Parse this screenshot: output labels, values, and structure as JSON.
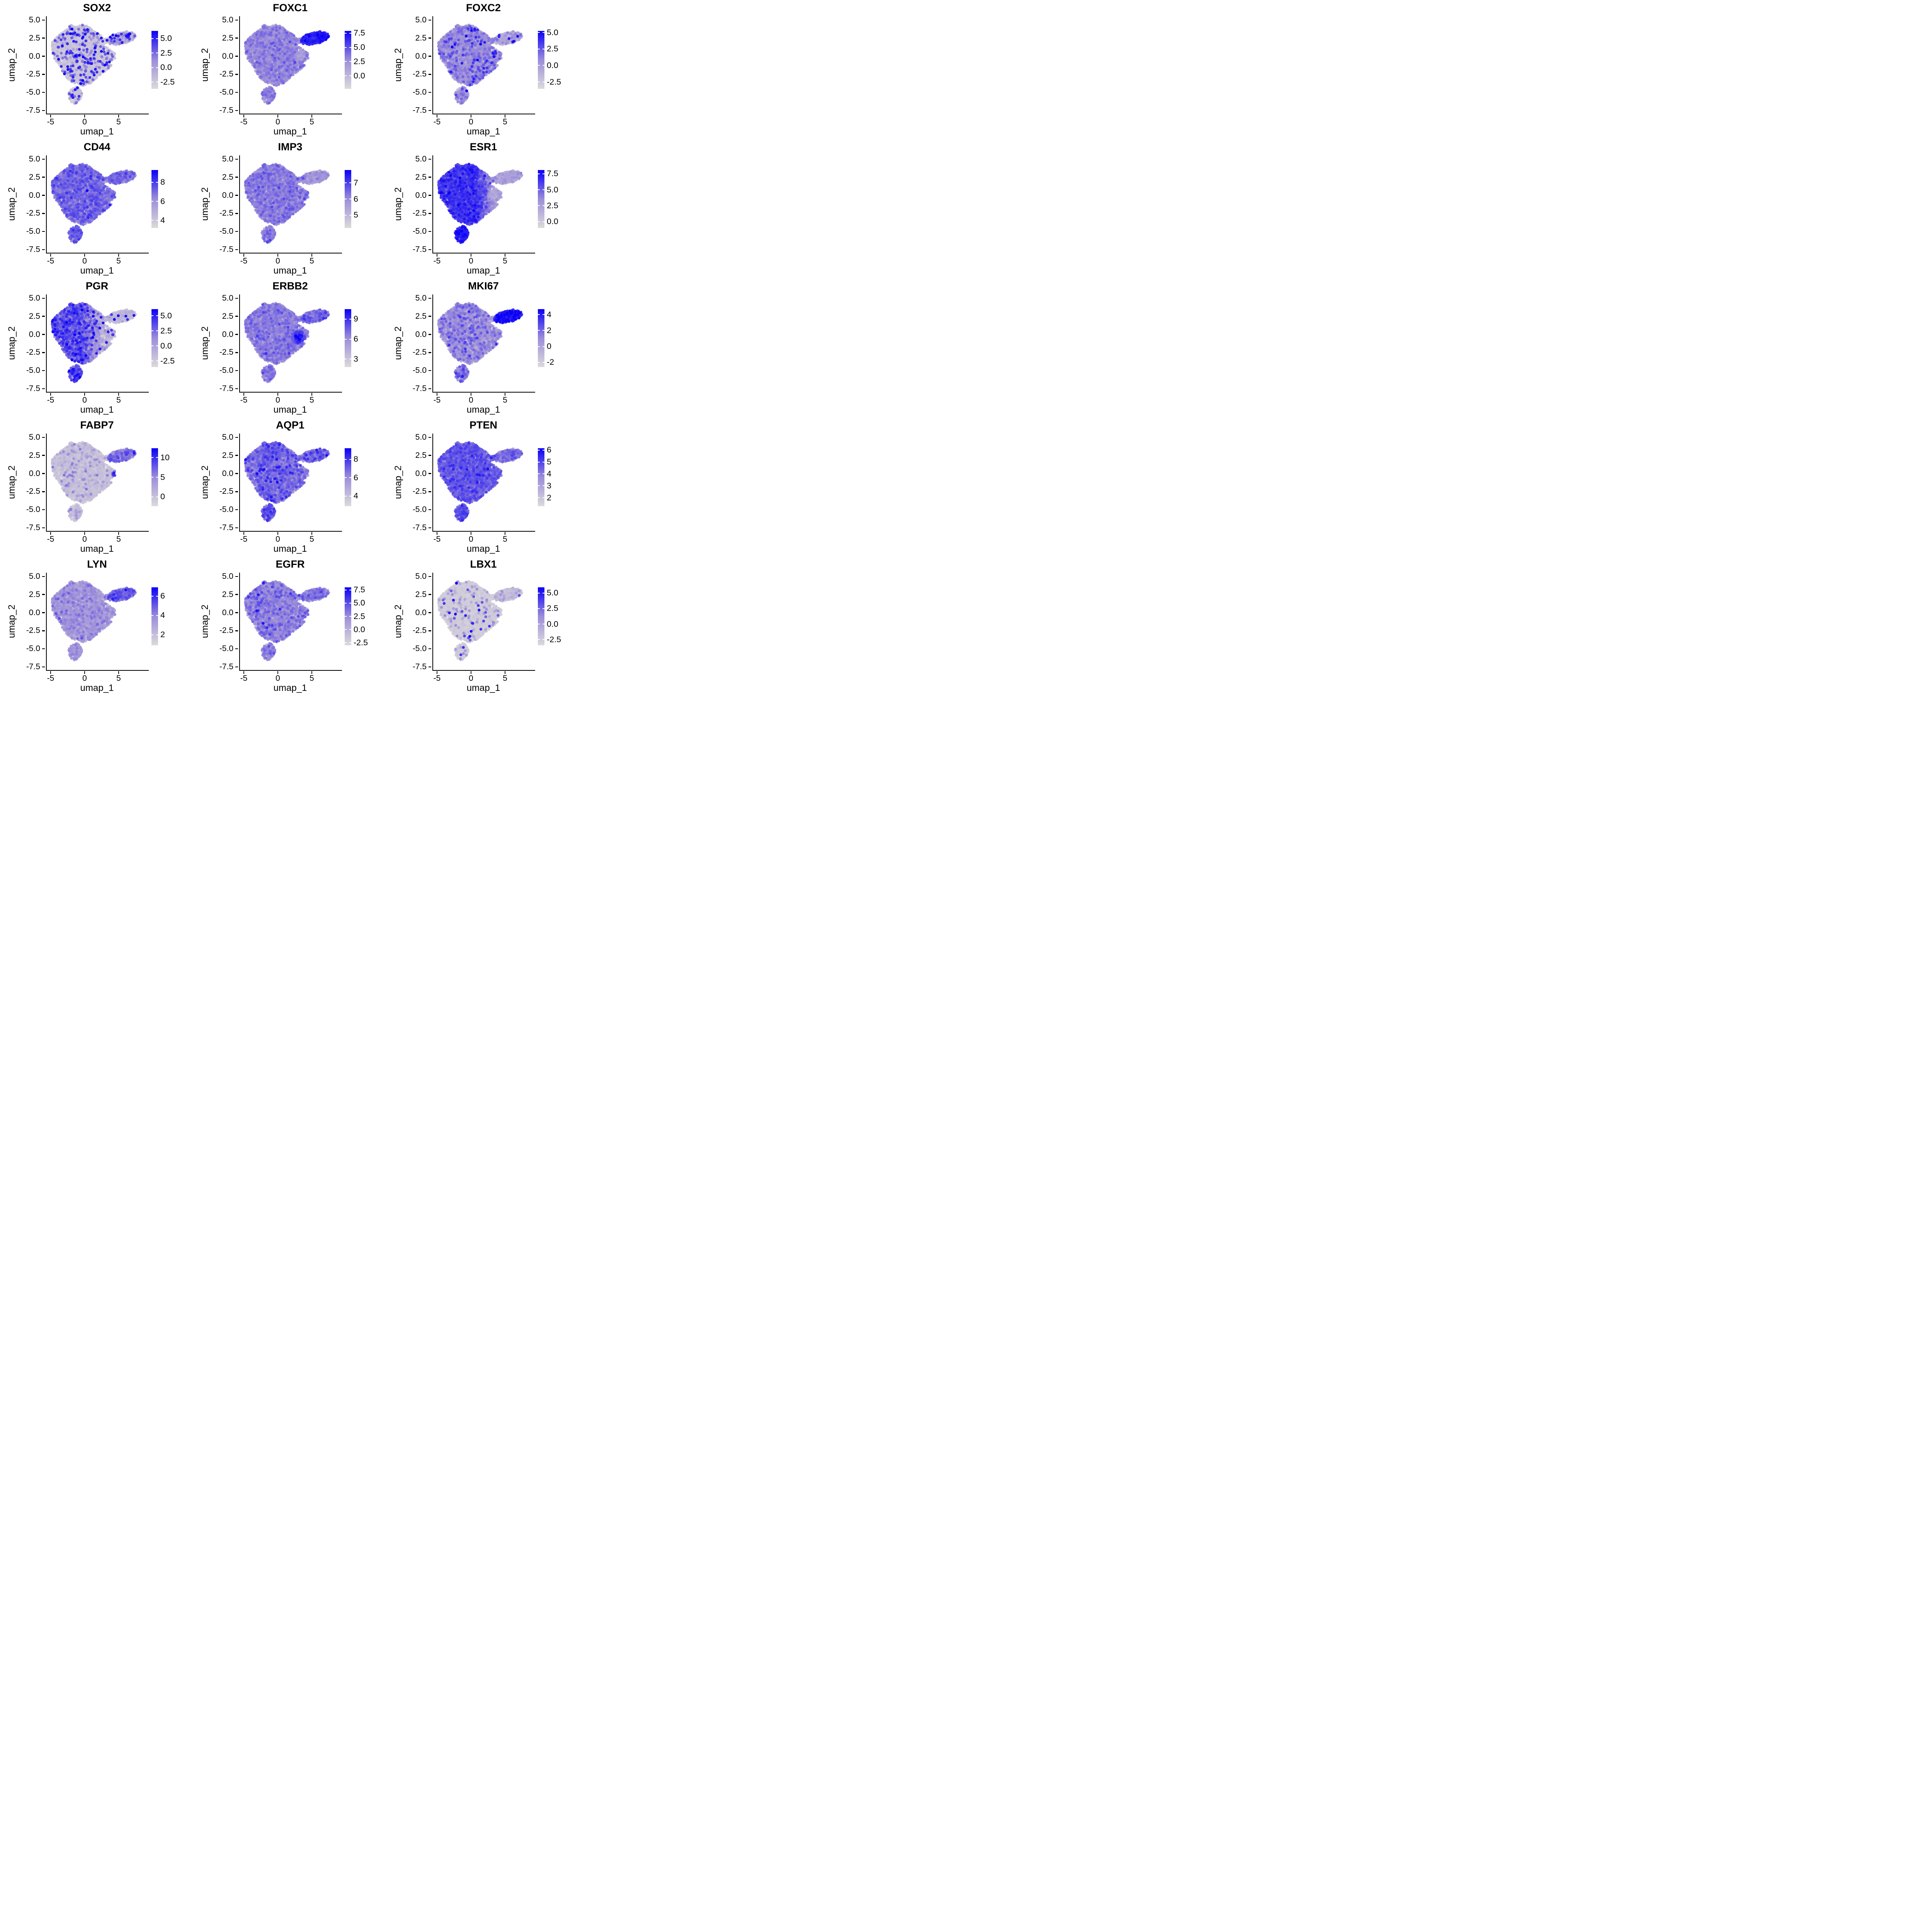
{
  "figure": {
    "rows": 5,
    "cols": 3,
    "background": "#FFFFFF",
    "description": "Grid of single-cell UMAP feature plots; identical embedding in every panel, points colored by per-gene expression from light grey (low) to blue (high)."
  },
  "axes": {
    "x_label": "umap_1",
    "y_label": "umap_2",
    "x_tick_labels": [
      "-5",
      "0",
      "5"
    ],
    "x_tick_values": [
      -5,
      0,
      5
    ],
    "y_tick_labels": [
      "5.0",
      "2.5",
      "0.0",
      "-2.5",
      "-5.0",
      "-7.5"
    ],
    "y_tick_values": [
      5,
      2.5,
      0,
      -2.5,
      -5,
      -7.5
    ],
    "x_domain": [
      -5.68,
      9.32
    ],
    "y_domain": [
      -7.93,
      5.53
    ]
  },
  "chart_data": {
    "type": "scatter",
    "subtype": "umap-feature-plot-grid",
    "grid": "5 rows x 3 columns",
    "colors": {
      "low": "#DCDADA",
      "mid": "#9C8DDA",
      "high": "#0A00F8"
    },
    "axes": {
      "x_label": "umap_1",
      "y_label": "umap_2",
      "x_tick_labels": [
        "-5",
        "0",
        "5"
      ],
      "x_tick_values": [
        -5,
        0,
        5
      ],
      "y_tick_labels": [
        "5.0",
        "2.5",
        "0.0",
        "-2.5",
        "-5.0",
        "-7.5"
      ],
      "y_tick_values": [
        5,
        2.5,
        0,
        -2.5,
        -5,
        -7.5
      ],
      "x_domain": [
        -5.68,
        9.32
      ],
      "y_domain": [
        -7.93,
        5.53
      ]
    },
    "embedding": {
      "note": "Shared UMAP embedding, ~2800 cells, procedurally regenerated from these cluster outlines (data coordinates).",
      "seed": 42,
      "main": {
        "count": 2300,
        "polygon": [
          [
            -4.9,
            1.9
          ],
          [
            -4.1,
            2.7
          ],
          [
            -2.9,
            3.6
          ],
          [
            -2.1,
            4.35
          ],
          [
            -1.3,
            4.05
          ],
          [
            -0.35,
            4.4
          ],
          [
            0.55,
            4.05
          ],
          [
            1.3,
            3.4
          ],
          [
            2.2,
            2.95
          ],
          [
            2.75,
            2.35
          ],
          [
            2.6,
            1.7
          ],
          [
            3.1,
            1.25
          ],
          [
            4.3,
            0.4
          ],
          [
            4.35,
            -0.3
          ],
          [
            3.55,
            -0.85
          ],
          [
            3.9,
            -1.45
          ],
          [
            3.1,
            -1.9
          ],
          [
            2.35,
            -2.4
          ],
          [
            1.55,
            -3.1
          ],
          [
            0.6,
            -3.8
          ],
          [
            -0.3,
            -4.15
          ],
          [
            -1.15,
            -3.95
          ],
          [
            -2.0,
            -3.55
          ],
          [
            -2.7,
            -3.0
          ],
          [
            -3.3,
            -2.2
          ],
          [
            -3.7,
            -1.35
          ],
          [
            -4.45,
            -0.55
          ],
          [
            -4.9,
            0.4
          ]
        ]
      },
      "appendage": {
        "count": 190,
        "polygon": [
          [
            -1.35,
            -4.1
          ],
          [
            -0.85,
            -4.45
          ],
          [
            -0.5,
            -5.0
          ],
          [
            -0.55,
            -5.65
          ],
          [
            -1.0,
            -6.1
          ],
          [
            -1.5,
            -6.6
          ],
          [
            -2.05,
            -6.35
          ],
          [
            -2.35,
            -5.85
          ],
          [
            -2.5,
            -5.25
          ],
          [
            -2.2,
            -4.7
          ],
          [
            -1.8,
            -4.4
          ]
        ]
      },
      "satellite": {
        "count": 300,
        "cx": 5.35,
        "cy": 2.5,
        "rx": 2.05,
        "ry": 0.8,
        "angle_deg": 12
      },
      "bridge": {
        "count": 22,
        "x0": 2.5,
        "y0": 2.05,
        "x1": 3.6,
        "y1": 2.35,
        "spread": 0.22
      }
    },
    "panels": [
      {
        "gene": "SOX2",
        "legend": {
          "labels": [
            "5.0",
            "2.5",
            "0.0",
            "-2.5"
          ],
          "values": [
            5,
            2.5,
            0,
            -2.5
          ],
          "vmin": -3.7,
          "vmax": 6.3
        },
        "summary": "mostly low (grey); scattered strongly positive cells",
        "expr": {
          "base": 0.1,
          "noise": 0.05,
          "mods": [
            {
              "type": "region",
              "region": "satellite",
              "t": 0.18,
              "noise": 0.12
            },
            {
              "type": "sparse",
              "frac": 0.1,
              "tmin": 0.3,
              "tmax": 1.0
            }
          ]
        }
      },
      {
        "gene": "FOXC1",
        "legend": {
          "labels": [
            "7.5",
            "5.0",
            "2.5",
            "0.0"
          ],
          "values": [
            7.5,
            5,
            2.5,
            0
          ],
          "vmin": -2.3,
          "vmax": 7.9
        },
        "summary": "moderate everywhere; top-right satellite cluster strongly positive",
        "expr": {
          "base": 0.42,
          "noise": 0.1,
          "mods": [
            {
              "type": "disk",
              "cx": 3.2,
              "cy": 0.2,
              "r": 0.95,
              "t": 0.3,
              "noise": 0.08
            },
            {
              "type": "region",
              "region": "satellite",
              "t": 0.78,
              "noise": 0.1
            },
            {
              "type": "disk",
              "cx": 6.2,
              "cy": 2.7,
              "r": 1.3,
              "t": 0.88,
              "noise": 0.08
            },
            {
              "type": "region",
              "region": "appendage",
              "t": 0.45,
              "noise": 0.1
            }
          ]
        }
      },
      {
        "gene": "FOXC2",
        "legend": {
          "labels": [
            "5.0",
            "2.5",
            "0.0",
            "-2.5"
          ],
          "values": [
            5,
            2.5,
            0,
            -2.5
          ],
          "vmin": -3.55,
          "vmax": 5.25
        },
        "summary": "moderate in main blob; satellite lighter with a few high cells",
        "expr": {
          "base": 0.38,
          "noise": 0.12,
          "mods": [
            {
              "type": "region",
              "region": "satellite",
              "t": 0.22,
              "noise": 0.15
            },
            {
              "type": "sparse",
              "frac": 0.02,
              "tmin": 0.7,
              "tmax": 1.0
            }
          ]
        }
      },
      {
        "gene": "CD44",
        "legend": {
          "labels": [
            "8",
            "6",
            "4"
          ],
          "values": [
            8,
            6,
            4
          ],
          "vmin": 3.2,
          "vmax": 9.3
        },
        "summary": "fairly uniform moderate expression",
        "expr": {
          "base": 0.52,
          "noise": 0.12,
          "mods": [
            {
              "type": "region",
              "region": "satellite",
              "t": 0.48,
              "noise": 0.12
            },
            {
              "type": "region",
              "region": "appendage",
              "t": 0.56,
              "noise": 0.1
            }
          ]
        }
      },
      {
        "gene": "IMP3",
        "legend": {
          "labels": [
            "7",
            "6",
            "5"
          ],
          "values": [
            7,
            6,
            5
          ],
          "vmin": 4.2,
          "vmax": 7.8
        },
        "summary": "uniform moderate; satellite slightly lighter",
        "expr": {
          "base": 0.46,
          "noise": 0.1,
          "mods": [
            {
              "type": "region",
              "region": "satellite",
              "t": 0.34,
              "noise": 0.1
            },
            {
              "type": "region",
              "region": "appendage",
              "t": 0.46,
              "noise": 0.1
            }
          ]
        }
      },
      {
        "gene": "ESR1",
        "legend": {
          "labels": [
            "7.5",
            "5.0",
            "2.5",
            "0.0"
          ],
          "values": [
            7.5,
            5,
            2.5,
            0
          ],
          "vmin": -1.0,
          "vmax": 8.1
        },
        "summary": "high across main blob, fading to low on right edge; satellite low; bottom appendage very high",
        "expr": {
          "base": 0.72,
          "noise": 0.1,
          "mods": [
            {
              "type": "xdrop",
              "x0": 0.5,
              "x1": 3.9,
              "drop": 0.42
            },
            {
              "type": "disk",
              "cx": 3.1,
              "cy": 0.1,
              "r": 1.05,
              "t": 0.22,
              "noise": 0.08
            },
            {
              "type": "region",
              "region": "satellite",
              "t": 0.28,
              "noise": 0.08
            },
            {
              "type": "region",
              "region": "appendage",
              "t": 0.84,
              "noise": 0.07
            }
          ]
        }
      },
      {
        "gene": "PGR",
        "legend": {
          "labels": [
            "5.0",
            "2.5",
            "0.0",
            "-2.5"
          ],
          "values": [
            5,
            2.5,
            0,
            -2.5
          ],
          "vmin": -3.5,
          "vmax": 6.1
        },
        "summary": "high on left half of main blob, low on right; satellite very low",
        "expr": {
          "base": 0.56,
          "noise": 0.16,
          "mods": [
            {
              "type": "xdrop",
              "x0": -0.6,
              "x1": 2.8,
              "drop": 0.45
            },
            {
              "type": "region",
              "region": "satellite",
              "t": 0.14,
              "noise": 0.08
            },
            {
              "type": "region",
              "region": "appendage",
              "t": 0.6,
              "noise": 0.14
            },
            {
              "type": "sparse",
              "frac": 0.02,
              "tmin": 0.75,
              "tmax": 1.0
            }
          ]
        }
      },
      {
        "gene": "ERBB2",
        "legend": {
          "labels": [
            "9",
            "6",
            "3"
          ],
          "values": [
            9,
            6,
            3
          ],
          "vmin": 1.8,
          "vmax": 10.5
        },
        "summary": "moderate overall with strong hotspot right-of-center (~x=3, y=-0.4)",
        "expr": {
          "base": 0.46,
          "noise": 0.1,
          "mods": [
            {
              "type": "disk",
              "cx": 2.9,
              "cy": -0.4,
              "r": 1.15,
              "t": 0.85,
              "noise": 0.12
            },
            {
              "type": "region",
              "region": "satellite",
              "t": 0.5,
              "noise": 0.12
            },
            {
              "type": "region",
              "region": "appendage",
              "t": 0.46,
              "noise": 0.1
            }
          ]
        }
      },
      {
        "gene": "MKI67",
        "legend": {
          "labels": [
            "4",
            "2",
            "0",
            "-2"
          ],
          "values": [
            4,
            2,
            0,
            -2
          ],
          "vmin": -2.6,
          "vmax": 4.7
        },
        "summary": "mixed moderate; satellite cluster strongly positive",
        "expr": {
          "base": 0.36,
          "noise": 0.15,
          "mods": [
            {
              "type": "region",
              "region": "satellite",
              "t": 0.82,
              "noise": 0.12
            },
            {
              "type": "region",
              "region": "appendage",
              "t": 0.46,
              "noise": 0.14
            }
          ]
        }
      },
      {
        "gene": "FABP7",
        "legend": {
          "labels": [
            "10",
            "5",
            "0"
          ],
          "values": [
            10,
            5,
            0
          ],
          "vmin": -2.4,
          "vmax": 12.4
        },
        "summary": "mostly low; satellite moderate; few very high cells at right edge (~x=4.4)",
        "expr": {
          "base": 0.11,
          "noise": 0.06,
          "mods": [
            {
              "type": "region",
              "region": "satellite",
              "t": 0.45,
              "noise": 0.15
            },
            {
              "type": "disk",
              "cx": 4.35,
              "cy": -0.1,
              "r": 0.5,
              "t": 0.93,
              "noise": 0.1
            },
            {
              "type": "sparse",
              "frac": 0.03,
              "tmin": 0.3,
              "tmax": 0.6
            }
          ]
        }
      },
      {
        "gene": "AQP1",
        "legend": {
          "labels": [
            "8",
            "6",
            "4"
          ],
          "values": [
            8,
            6,
            4
          ],
          "vmin": 2.9,
          "vmax": 9.2
        },
        "summary": "moderate overall, slightly darker toward upper-left",
        "expr": {
          "base": 0.5,
          "noise": 0.12,
          "mods": [
            {
              "type": "disk",
              "cx": -1.2,
              "cy": 3.2,
              "r": 2.3,
              "t": 0.6,
              "noise": 0.1
            },
            {
              "type": "region",
              "region": "satellite",
              "t": 0.5,
              "noise": 0.15
            },
            {
              "type": "region",
              "region": "appendage",
              "t": 0.6,
              "noise": 0.1
            },
            {
              "type": "sparse",
              "frac": 0.01,
              "tmin": 0.75,
              "tmax": 0.95
            }
          ]
        }
      },
      {
        "gene": "PTEN",
        "legend": {
          "labels": [
            "6",
            "5",
            "4",
            "3",
            "2"
          ],
          "values": [
            6,
            5,
            4,
            3,
            2
          ],
          "vmin": 1.3,
          "vmax": 6.15
        },
        "summary": "fairly uniform moderately-high expression",
        "expr": {
          "base": 0.6,
          "noise": 0.1,
          "mods": [
            {
              "type": "region",
              "region": "satellite",
              "t": 0.5,
              "noise": 0.1
            },
            {
              "type": "region",
              "region": "appendage",
              "t": 0.64,
              "noise": 0.08
            }
          ]
        }
      },
      {
        "gene": "LYN",
        "legend": {
          "labels": [
            "6",
            "4",
            "2"
          ],
          "values": [
            6,
            4,
            2
          ],
          "vmin": 0.9,
          "vmax": 6.9
        },
        "summary": "low-moderate in main blob; satellite somewhat higher",
        "expr": {
          "base": 0.33,
          "noise": 0.12,
          "mods": [
            {
              "type": "region",
              "region": "satellite",
              "t": 0.55,
              "noise": 0.12
            },
            {
              "type": "region",
              "region": "appendage",
              "t": 0.33,
              "noise": 0.1
            }
          ]
        }
      },
      {
        "gene": "EGFR",
        "legend": {
          "labels": [
            "7.5",
            "5.0",
            "2.5",
            "0.0",
            "-2.5"
          ],
          "values": [
            7.5,
            5,
            2.5,
            0,
            -2.5
          ],
          "vmin": -3.0,
          "vmax": 8.0
        },
        "summary": "fairly uniform light-moderate expression",
        "expr": {
          "base": 0.42,
          "noise": 0.12,
          "mods": [
            {
              "type": "region",
              "region": "satellite",
              "t": 0.44,
              "noise": 0.12
            },
            {
              "type": "region",
              "region": "appendage",
              "t": 0.42,
              "noise": 0.1
            },
            {
              "type": "sparse",
              "frac": 0.005,
              "tmin": 0.7,
              "tmax": 0.95
            }
          ]
        }
      },
      {
        "gene": "LBX1",
        "legend": {
          "labels": [
            "5.0",
            "2.5",
            "0.0",
            "-2.5"
          ],
          "values": [
            5,
            2.5,
            0,
            -2.5
          ],
          "vmin": -3.4,
          "vmax": 5.9
        },
        "summary": "almost entirely low; rare scattered positive cells",
        "expr": {
          "base": 0.06,
          "noise": 0.035,
          "mods": [
            {
              "type": "region",
              "region": "satellite",
              "t": 0.1,
              "noise": 0.07
            },
            {
              "type": "sparse",
              "frac": 0.04,
              "tmin": 0.2,
              "tmax": 0.5
            },
            {
              "type": "sparse",
              "frac": 0.01,
              "tmin": 0.6,
              "tmax": 1.0
            }
          ]
        }
      }
    ]
  }
}
